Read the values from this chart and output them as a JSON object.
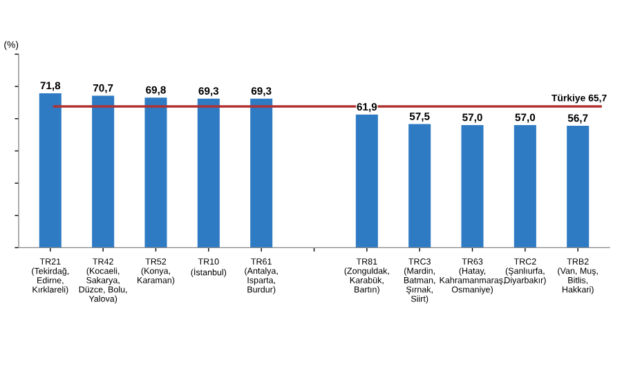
{
  "chart_data": {
    "type": "bar",
    "ylabel": "(%)",
    "categories": [
      "TR21\n(Tekirdağ,\nEdirne,\nKırklareli)",
      "TR42\n(Kocaeli,\nSakarya,\nDüzce, Bolu,\nYalova)",
      "TR52\n(Konya,\nKaraman)",
      "TR10\n(İstanbul)",
      "TR61\n(Antalya,\nIsparta,\nBurdur)",
      null,
      "TR81\n(Zonguldak,\nKarabük,\nBartın)",
      "TRC3\n(Mardin,\nBatman,\nŞırnak,\nSiirt)",
      "TR63\n(Hatay,\nKahramanmaraş,\nOsmaniye)",
      "TRC2\n(Şanlıurfa,\nDiyarbakır)",
      "TRB2\n(Van, Muş,\nBitlis,\nHakkari)"
    ],
    "values": [
      71.8,
      70.7,
      69.8,
      69.3,
      69.3,
      null,
      61.9,
      57.5,
      57.0,
      57.0,
      56.7
    ],
    "value_labels": [
      "71,8",
      "70,7",
      "69,8",
      "69,3",
      "69,3",
      null,
      "61,9",
      "57,5",
      "57,0",
      "57,0",
      "56,7"
    ],
    "color": "#2e7bc4",
    "ylim": [
      0,
      90
    ],
    "ref_lines": [
      {
        "axis": "y",
        "value": 65.7,
        "label": "Türkiye 65,7",
        "color": "#b03030"
      }
    ],
    "grid": false,
    "legend": false
  }
}
